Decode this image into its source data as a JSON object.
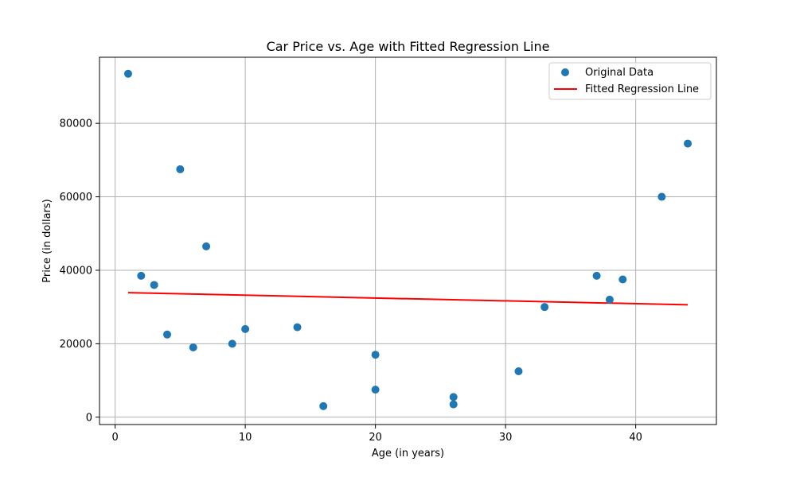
{
  "chart_data": {
    "type": "scatter",
    "title": "Car Price vs. Age with Fitted Regression Line",
    "xlabel": "Age (in years)",
    "ylabel": "Price (in dollars)",
    "xlim": [
      -1.2,
      46.2
    ],
    "ylim": [
      -2000,
      98000
    ],
    "xticks": [
      0,
      10,
      20,
      30,
      40
    ],
    "yticks": [
      0,
      20000,
      40000,
      60000,
      80000
    ],
    "grid": true,
    "legend_position": "top-right",
    "colors": {
      "points": "#1f77b4",
      "line": "#ff0000",
      "grid": "#b0b0b0"
    },
    "series": [
      {
        "name": "Original Data",
        "type": "scatter",
        "x": [
          1,
          2,
          3,
          4,
          5,
          6,
          7,
          9,
          10,
          14,
          16,
          20,
          20,
          26,
          26,
          31,
          33,
          37,
          38,
          39,
          42,
          44
        ],
        "y": [
          93500,
          38500,
          36000,
          22500,
          67500,
          19000,
          46500,
          20000,
          24000,
          24500,
          3000,
          17000,
          7500,
          5500,
          3500,
          12500,
          30000,
          38500,
          32000,
          37500,
          60000,
          74500
        ]
      },
      {
        "name": "Fitted Regression Line",
        "type": "line",
        "x": [
          1,
          44
        ],
        "y": [
          33900,
          30600
        ]
      }
    ]
  }
}
